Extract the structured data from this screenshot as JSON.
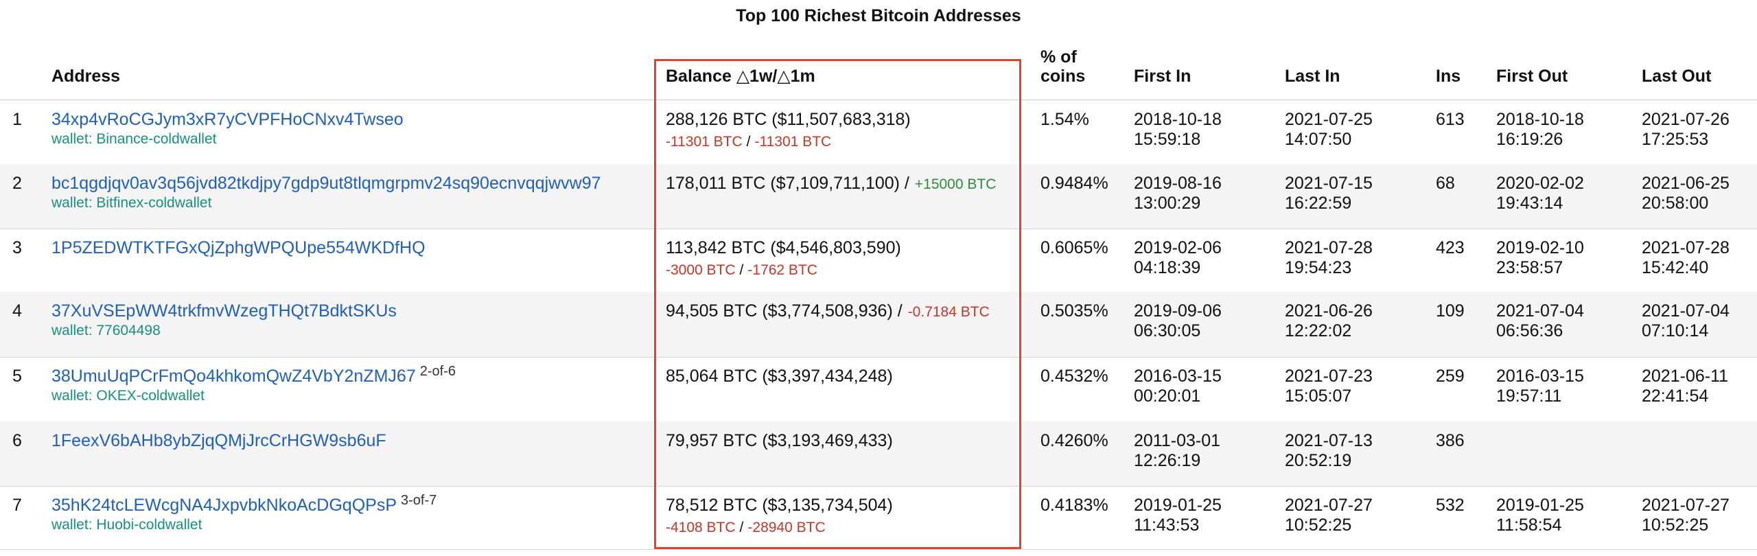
{
  "page": {
    "title": "Top 100 Richest Bitcoin Addresses"
  },
  "header": {
    "address": "Address",
    "balance": "Balance △1w/△1m",
    "pct_line1": "% of",
    "pct_line2": "coins",
    "first_in": "First In",
    "last_in": "Last In",
    "ins": "Ins",
    "first_out": "First Out",
    "last_out": "Last Out"
  },
  "rows": [
    {
      "rank": "1",
      "address": "34xp4vRoCGJym3xR7yCVPFHoCNxv4Twseo",
      "multisig": "",
      "wallet": "wallet: Binance-coldwallet",
      "balance": "288,126 BTC ($11,507,683,318)",
      "delta_w": "-11301 BTC",
      "delta_sep": "/",
      "delta_m": "-11301 BTC",
      "inline_delta": "",
      "pct": "1.54%",
      "first_in_date": "2018-10-18",
      "first_in_time": "15:59:18",
      "last_in_date": "2021-07-25",
      "last_in_time": "14:07:50",
      "ins": "613",
      "first_out_date": "2018-10-18",
      "first_out_time": "16:19:26",
      "last_out_date": "2021-07-26",
      "last_out_time": "17:25:53"
    },
    {
      "rank": "2",
      "address": "bc1qgdjqv0av3q56jvd82tkdjpy7gdp9ut8tlqmgrpmv24sq90ecnvqqjwvw97",
      "multisig": "",
      "wallet": "wallet: Bitfinex-coldwallet",
      "balance": "178,011 BTC ($7,109,711,100) /",
      "delta_w": "",
      "delta_sep": "",
      "delta_m": "",
      "inline_delta": "+15000 BTC",
      "pct": "0.9484%",
      "first_in_date": "2019-08-16",
      "first_in_time": "13:00:29",
      "last_in_date": "2021-07-15",
      "last_in_time": "16:22:59",
      "ins": "68",
      "first_out_date": "2020-02-02",
      "first_out_time": "19:43:14",
      "last_out_date": "2021-06-25",
      "last_out_time": "20:58:00"
    },
    {
      "rank": "3",
      "address": "1P5ZEDWTKTFGxQjZphgWPQUpe554WKDfHQ",
      "multisig": "",
      "wallet": "",
      "balance": "113,842 BTC ($4,546,803,590)",
      "delta_w": "-3000 BTC",
      "delta_sep": "/",
      "delta_m": "-1762 BTC",
      "inline_delta": "",
      "pct": "0.6065%",
      "first_in_date": "2019-02-06",
      "first_in_time": "04:18:39",
      "last_in_date": "2021-07-28",
      "last_in_time": "19:54:23",
      "ins": "423",
      "first_out_date": "2019-02-10",
      "first_out_time": "23:58:57",
      "last_out_date": "2021-07-28",
      "last_out_time": "15:42:40"
    },
    {
      "rank": "4",
      "address": "37XuVSEpWW4trkfmvWzegTHQt7BdktSKUs",
      "multisig": "",
      "wallet": "wallet: 77604498",
      "balance": "94,505 BTC ($3,774,508,936) /",
      "delta_w": "",
      "delta_sep": "",
      "delta_m": "",
      "inline_delta": "-0.7184 BTC",
      "pct": "0.5035%",
      "first_in_date": "2019-09-06",
      "first_in_time": "06:30:05",
      "last_in_date": "2021-06-26",
      "last_in_time": "12:22:02",
      "ins": "109",
      "first_out_date": "2021-07-04",
      "first_out_time": "06:56:36",
      "last_out_date": "2021-07-04",
      "last_out_time": "07:10:14"
    },
    {
      "rank": "5",
      "address": "38UmuUqPCrFmQo4khkomQwZ4VbY2nZMJ67",
      "multisig": "2-of-6",
      "wallet": "wallet: OKEX-coldwallet",
      "balance": "85,064 BTC ($3,397,434,248)",
      "delta_w": "",
      "delta_sep": "",
      "delta_m": "",
      "inline_delta": "",
      "pct": "0.4532%",
      "first_in_date": "2016-03-15",
      "first_in_time": "00:20:01",
      "last_in_date": "2021-07-23",
      "last_in_time": "15:05:07",
      "ins": "259",
      "first_out_date": "2016-03-15",
      "first_out_time": "19:57:11",
      "last_out_date": "2021-06-11",
      "last_out_time": "22:41:54"
    },
    {
      "rank": "6",
      "address": "1FeexV6bAHb8ybZjqQMjJrcCrHGW9sb6uF",
      "multisig": "",
      "wallet": "",
      "balance": "79,957 BTC ($3,193,469,433)",
      "delta_w": "",
      "delta_sep": "",
      "delta_m": "",
      "inline_delta": "",
      "pct": "0.4260%",
      "first_in_date": "2011-03-01",
      "first_in_time": "12:26:19",
      "last_in_date": "2021-07-13",
      "last_in_time": "20:52:19",
      "ins": "386",
      "first_out_date": "",
      "first_out_time": "",
      "last_out_date": "",
      "last_out_time": ""
    },
    {
      "rank": "7",
      "address": "35hK24tcLEWcgNA4JxpvbkNkoAcDGqQPsP",
      "multisig": "3-of-7",
      "wallet": "wallet: Huobi-coldwallet",
      "balance": "78,512 BTC ($3,135,734,504)",
      "delta_w": "-4108 BTC",
      "delta_sep": "/",
      "delta_m": "-28940 BTC",
      "inline_delta": "",
      "pct": "0.4183%",
      "first_in_date": "2019-01-25",
      "first_in_time": "11:43:53",
      "last_in_date": "2021-07-27",
      "last_in_time": "10:52:25",
      "ins": "532",
      "first_out_date": "2019-01-25",
      "first_out_time": "11:58:54",
      "last_out_date": "2021-07-27",
      "last_out_time": "10:52:25"
    }
  ],
  "colors": {
    "address_link": "#1f5fbd",
    "wallet_link": "#17907f",
    "negative_delta": "#c0392b",
    "positive_delta": "#2e8b3d",
    "highlight_border": "#e0432f",
    "alt_row_bg": "#f4f4f4"
  }
}
